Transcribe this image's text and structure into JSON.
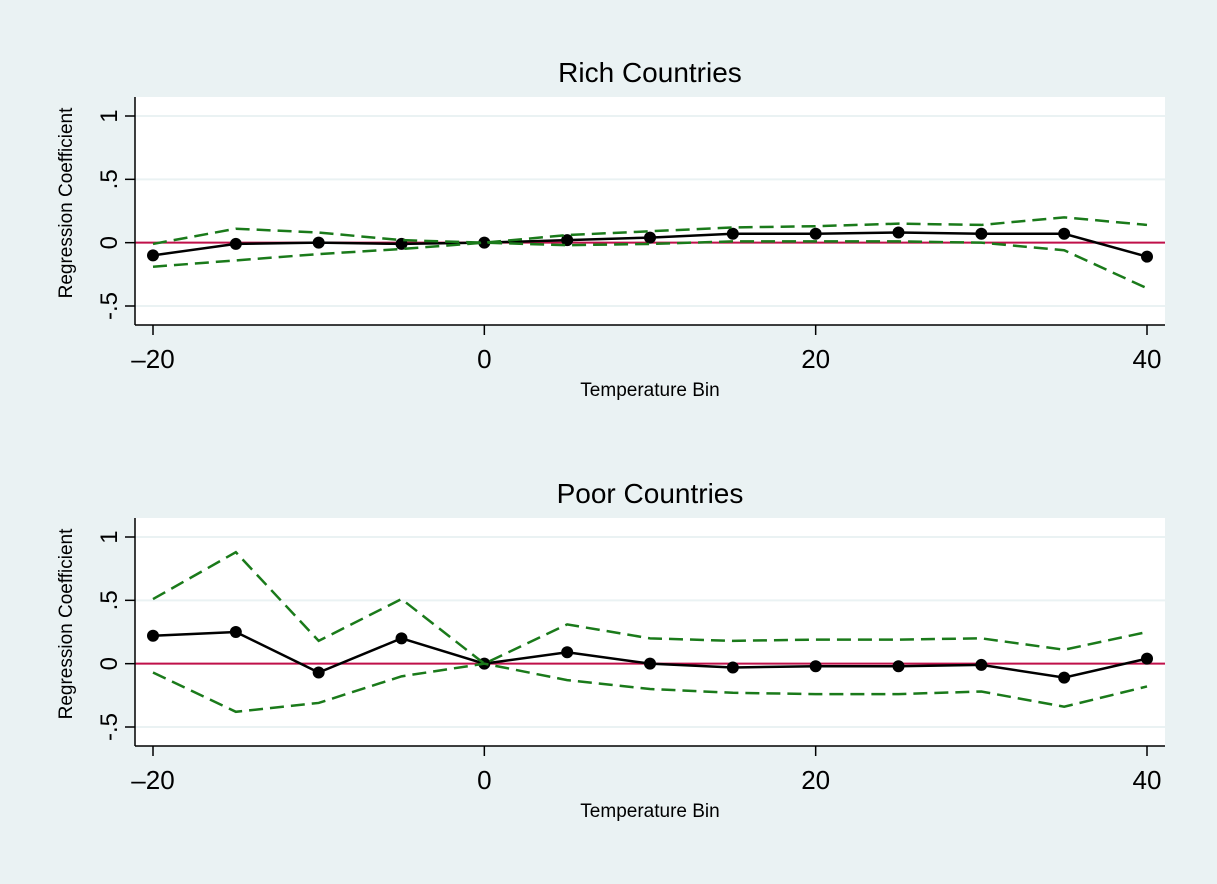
{
  "colors": {
    "background": "#eaf2f3",
    "plot_area": "#ffffff",
    "gridline": "#eaf2f3",
    "estimate_line": "#000000",
    "ci_line": "#1a7a1a",
    "zero_line": "#c0104a"
  },
  "chart_data": [
    {
      "type": "line",
      "title": "Rich Countries",
      "xlabel": "Temperature Bin",
      "ylabel": "Regression Coefficient",
      "xlim": [
        -20,
        40
      ],
      "ylim": [
        -0.65,
        1.15
      ],
      "x_ticks": [
        -20,
        0,
        20,
        40
      ],
      "x_tick_labels": [
        "–20",
        "0",
        "20",
        "40"
      ],
      "y_ticks": [
        -0.5,
        0,
        0.5,
        1
      ],
      "y_tick_labels": [
        "-.5",
        "0",
        ".5",
        "1"
      ],
      "grid": true,
      "reference_line_y": 0,
      "x": [
        -20,
        -15,
        -10,
        -5,
        0,
        5,
        10,
        15,
        20,
        25,
        30,
        35,
        40
      ],
      "series": [
        {
          "role": "estimate",
          "values": [
            -0.1,
            -0.01,
            0.0,
            -0.01,
            0.0,
            0.02,
            0.04,
            0.07,
            0.07,
            0.08,
            0.07,
            0.07,
            -0.11
          ]
        },
        {
          "role": "upper",
          "values": [
            -0.01,
            0.11,
            0.08,
            0.02,
            0.0,
            0.06,
            0.09,
            0.12,
            0.13,
            0.15,
            0.14,
            0.2,
            0.14
          ]
        },
        {
          "role": "lower",
          "values": [
            -0.19,
            -0.14,
            -0.09,
            -0.05,
            0.0,
            -0.02,
            -0.01,
            0.01,
            0.01,
            0.01,
            0.0,
            -0.06,
            -0.36
          ]
        }
      ]
    },
    {
      "type": "line",
      "title": "Poor Countries",
      "xlabel": "Temperature Bin",
      "ylabel": "Regression Coefficient",
      "xlim": [
        -20,
        40
      ],
      "ylim": [
        -0.65,
        1.15
      ],
      "x_ticks": [
        -20,
        0,
        20,
        40
      ],
      "x_tick_labels": [
        "–20",
        "0",
        "20",
        "40"
      ],
      "y_ticks": [
        -0.5,
        0,
        0.5,
        1
      ],
      "y_tick_labels": [
        "-.5",
        "0",
        ".5",
        "1"
      ],
      "grid": true,
      "reference_line_y": 0,
      "x": [
        -20,
        -15,
        -10,
        -5,
        0,
        5,
        10,
        15,
        20,
        25,
        30,
        35,
        40
      ],
      "series": [
        {
          "role": "estimate",
          "values": [
            0.22,
            0.25,
            -0.07,
            0.2,
            0.0,
            0.09,
            0.0,
            -0.03,
            -0.02,
            -0.02,
            -0.01,
            -0.11,
            0.04
          ]
        },
        {
          "role": "upper",
          "values": [
            0.51,
            0.88,
            0.18,
            0.51,
            0.0,
            0.31,
            0.2,
            0.18,
            0.19,
            0.19,
            0.2,
            0.11,
            0.25
          ]
        },
        {
          "role": "lower",
          "values": [
            -0.07,
            -0.38,
            -0.31,
            -0.1,
            0.0,
            -0.13,
            -0.2,
            -0.23,
            -0.24,
            -0.24,
            -0.22,
            -0.34,
            -0.18
          ]
        }
      ]
    }
  ]
}
